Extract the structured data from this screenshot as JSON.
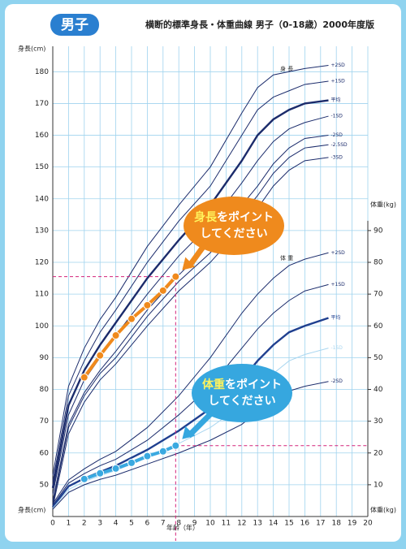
{
  "chart_data": {
    "type": "line",
    "badge": "男子",
    "title": "横断的標準身長・体重曲線 男子（0-18歳）2000年度版",
    "y_label": "身長(cm)",
    "y2_label": "体重(kg)",
    "x_label": "年齢（年）",
    "height_curves_label": "身 長",
    "weight_curves_label": "体 重",
    "xlim": [
      0,
      20
    ],
    "xticks": [
      0,
      1,
      2,
      3,
      4,
      5,
      6,
      7,
      8,
      9,
      10,
      11,
      12,
      13,
      14,
      15,
      16,
      17,
      18,
      19,
      20
    ],
    "ylim": [
      40,
      188
    ],
    "yticks": [
      50,
      60,
      70,
      80,
      90,
      100,
      110,
      120,
      130,
      140,
      150,
      160,
      170,
      180
    ],
    "y2lim": [
      0,
      148
    ],
    "y2ticks": [
      10,
      20,
      30,
      40,
      50,
      60,
      70,
      80,
      90
    ],
    "grid": true,
    "x": [
      0,
      1,
      2,
      3,
      4,
      6,
      8,
      10,
      12,
      13,
      14,
      15,
      16,
      17.5
    ],
    "series": [
      {
        "name": "+2SD",
        "axis": "y",
        "color": "#1b2b6b",
        "bold": false,
        "values": [
          53,
          81,
          93,
          102,
          109,
          125,
          138,
          150,
          167,
          175,
          179,
          180,
          181,
          182
        ]
      },
      {
        "name": "+1SD",
        "axis": "y",
        "color": "#1b2b6b",
        "bold": false,
        "values": [
          51,
          78,
          89,
          98,
          105,
          120,
          133,
          144,
          160,
          168,
          172,
          174,
          176,
          177
        ]
      },
      {
        "name": "平均",
        "axis": "y",
        "color": "#1b2b6b",
        "bold": true,
        "values": [
          49,
          75,
          86,
          94,
          101,
          115,
          127,
          138,
          152,
          160,
          165,
          168,
          170,
          171
        ]
      },
      {
        "name": "-1SD",
        "axis": "y",
        "color": "#1b2b6b",
        "bold": false,
        "values": [
          47,
          72,
          83,
          90,
          97,
          110,
          122,
          132,
          145,
          152,
          158,
          162,
          164,
          166
        ]
      },
      {
        "name": "-2SD",
        "axis": "y",
        "color": "#1b2b6b",
        "bold": false,
        "values": [
          45,
          69,
          79,
          86,
          92,
          105,
          116,
          126,
          138,
          144,
          151,
          156,
          159,
          160
        ]
      },
      {
        "name": "-2.5SD",
        "axis": "y",
        "color": "#1b2b6b",
        "bold": false,
        "values": [
          44,
          68,
          78,
          85,
          90,
          103,
          114,
          123,
          135,
          141,
          148,
          153,
          156,
          157
        ]
      },
      {
        "name": "-3SD",
        "axis": "y",
        "color": "#1b2b6b",
        "bold": false,
        "values": [
          43,
          66,
          76,
          83,
          88,
          100,
          111,
          120,
          131,
          137,
          144,
          149,
          152,
          153
        ]
      },
      {
        "name": "+2SD",
        "axis": "y2",
        "color": "#1b2b6b",
        "bold": false,
        "values": [
          4,
          11.5,
          15,
          18,
          20.5,
          28,
          38,
          50,
          64,
          70,
          75,
          79,
          81,
          83
        ]
      },
      {
        "name": "+1SD",
        "axis": "y2",
        "color": "#1b2b6b",
        "bold": false,
        "values": [
          3.5,
          10.5,
          13.5,
          16,
          18,
          24,
          32,
          41,
          53,
          59,
          64,
          68,
          71,
          73
        ]
      },
      {
        "name": "平均",
        "axis": "y2",
        "color": "#1f3f8f",
        "bold": true,
        "values": [
          3,
          9.5,
          12,
          14,
          16,
          21,
          27,
          34,
          43,
          49,
          54,
          58,
          60,
          62.5
        ]
      },
      {
        "name": "-1SD",
        "axis": "y2",
        "color": "#a9d6f0",
        "bold": false,
        "values": [
          2.6,
          8.5,
          11,
          12.8,
          14.5,
          18.5,
          23,
          28,
          35,
          40,
          45,
          49,
          51,
          53
        ]
      },
      {
        "name": "-2SD",
        "axis": "y2",
        "color": "#1b2b6b",
        "bold": false,
        "values": [
          2.3,
          7.6,
          10,
          11.7,
          13,
          16.5,
          20,
          24,
          29,
          33,
          37,
          39.5,
          41,
          42.5
        ]
      }
    ],
    "points": {
      "x": [
        2,
        3,
        4,
        5,
        6,
        7,
        7.8
      ],
      "height": [
        83.8,
        90.7,
        97,
        102.2,
        106.5,
        111.1,
        115.5
      ],
      "height_color": "#f08a1c",
      "weight": [
        11.8,
        13.6,
        15.1,
        16.9,
        19,
        20.5,
        22.3
      ],
      "weight_color": "#3aa9e0"
    },
    "callouts": [
      {
        "highlight": "身長",
        "text": "をポイント",
        "line2": "してください",
        "color": "#ef8a1d"
      },
      {
        "highlight": "体重",
        "text": "をポイント",
        "line2": "してください",
        "color": "#36a7df"
      }
    ]
  }
}
